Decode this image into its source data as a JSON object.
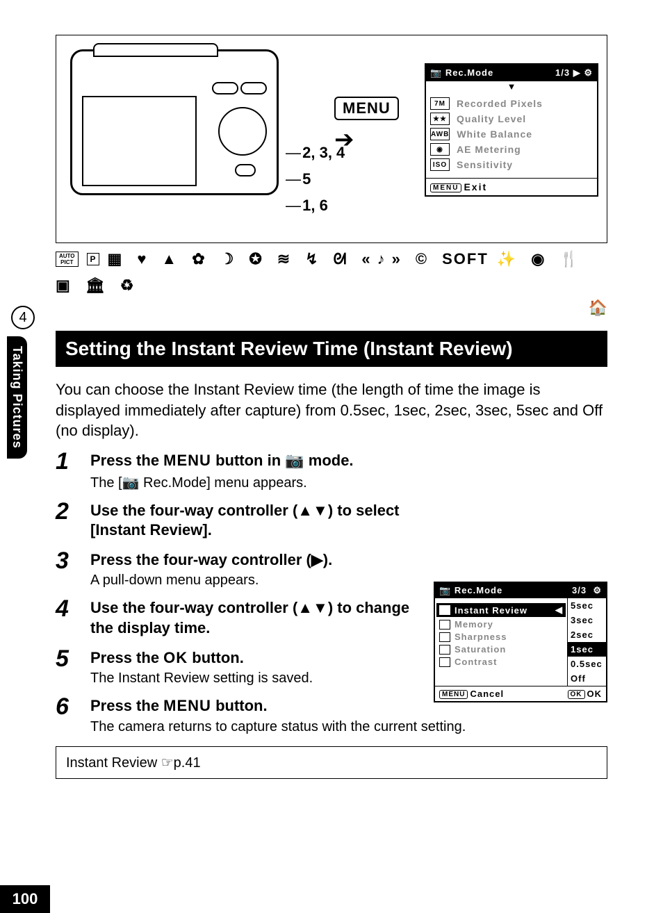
{
  "page": {
    "chapter_number": "4",
    "chapter_title": "Taking Pictures",
    "page_number": "100"
  },
  "top_lcd": {
    "title": "Rec.Mode",
    "page": "1/3",
    "icon_right": "⚙",
    "nav_arrow": "▶",
    "down_arrow": "▼",
    "rows": [
      {
        "badge": "7M",
        "label": "Recorded Pixels"
      },
      {
        "badge": "★★",
        "label": "Quality Level"
      },
      {
        "badge": "AWB",
        "label": "White Balance"
      },
      {
        "badge": "◉",
        "label": "AE Metering"
      },
      {
        "badge": "ISO",
        "label": "Sensitivity"
      }
    ],
    "footer_badge": "MENU",
    "footer_label": "Exit"
  },
  "diagram_labels": {
    "menu": "MENU",
    "l1": "2, 3, 4",
    "l2": "5",
    "l3": "1, 6"
  },
  "icon_strip": {
    "auto_pict": "AUTO\nPICT",
    "p": "P",
    "soft": "SOFT"
  },
  "section_title": "Setting the Instant Review Time (Instant Review)",
  "intro": "You can choose the Instant Review time (the length of time the image is displayed immediately after capture) from 0.5sec, 1sec, 2sec, 3sec, 5sec and Off (no display).",
  "steps": [
    {
      "head_pre": "Press the ",
      "head_kw": "MENU",
      "head_post": " button in 📷 mode.",
      "body": "The [📷 Rec.Mode] menu appears."
    },
    {
      "head_pre": "Use the four-way controller (▲▼) to select [Instant Review].",
      "head_kw": "",
      "head_post": "",
      "body": ""
    },
    {
      "head_pre": "Press the four-way controller (▶).",
      "head_kw": "",
      "head_post": "",
      "body": "A pull-down menu appears."
    },
    {
      "head_pre": "Use the four-way controller (▲▼) to change the display time.",
      "head_kw": "",
      "head_post": "",
      "body": ""
    },
    {
      "head_pre": "Press the ",
      "head_kw": "OK",
      "head_post": " button.",
      "body": "The Instant Review setting is saved."
    },
    {
      "head_pre": "Press the ",
      "head_kw": "MENU",
      "head_post": " button.",
      "body": "The camera returns to capture status with the current setting."
    }
  ],
  "step_lcd": {
    "title": "Rec.Mode",
    "page": "3/3",
    "icon_right": "⚙",
    "rows": [
      {
        "label": "Instant Review",
        "active": true,
        "arrow": "◀"
      },
      {
        "label": "Memory",
        "active": false
      },
      {
        "label": "Sharpness",
        "active": false
      },
      {
        "label": "Saturation",
        "active": false
      },
      {
        "label": "Contrast",
        "active": false
      }
    ],
    "options": [
      {
        "label": "5sec",
        "selected": false
      },
      {
        "label": "3sec",
        "selected": false
      },
      {
        "label": "2sec",
        "selected": false
      },
      {
        "label": "1sec",
        "selected": true
      },
      {
        "label": "0.5sec",
        "selected": false
      },
      {
        "label": "Off",
        "selected": false
      }
    ],
    "cancel_badge": "MENU",
    "cancel_label": "Cancel",
    "ok_badge": "OK",
    "ok_label": "OK"
  },
  "note": "Instant Review ☞p.41"
}
